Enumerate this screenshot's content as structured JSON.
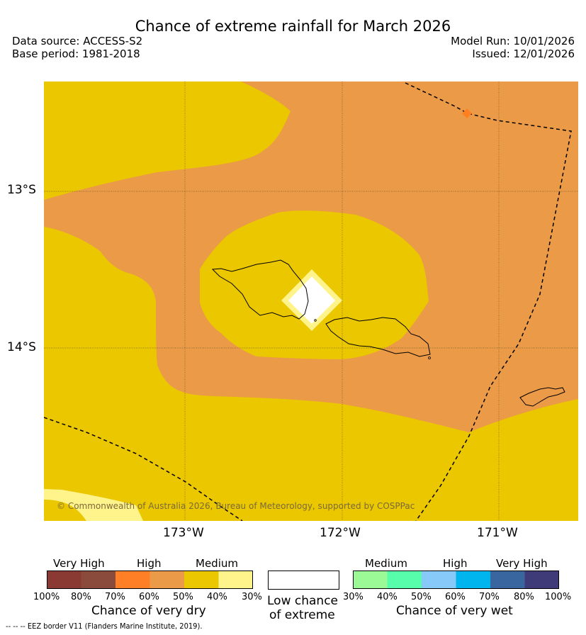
{
  "header": {
    "title": "Chance of extreme rainfall for March 2026",
    "data_source": "Data source: ACCESS-S2",
    "base_period": "Base period: 1981-2018",
    "model_run": "Model Run: 10/01/2026",
    "issued": "Issued: 12/01/2026"
  },
  "map": {
    "lat_labels": [
      "13°S",
      "14°S"
    ],
    "lon_labels": [
      "173°W",
      "172°W",
      "171°W"
    ],
    "copyright": "© Commonwealth of Australia 2026, Bureau of Meteorology, supported by COSPPac",
    "colors": {
      "medium_dry": "#ebc700",
      "high_dry": "#eb9a47",
      "low_dry": "#fff48c",
      "low_chance": "#ffffff",
      "marker": "#ff8020"
    }
  },
  "legend": {
    "dry": {
      "groups": [
        "Very High",
        "High",
        "Medium"
      ],
      "colors": [
        "#8b3a33",
        "#8b4b3c",
        "#ff7f27",
        "#eb9a47",
        "#ebc700",
        "#fff48c"
      ],
      "ticks": [
        "100%",
        "80%",
        "70%",
        "60%",
        "50%",
        "40%",
        "30%"
      ],
      "title": "Chance of very dry"
    },
    "low": {
      "title_line1": "Low chance",
      "title_line2": "of extreme"
    },
    "wet": {
      "groups": [
        "Medium",
        "High",
        "Very High"
      ],
      "colors": [
        "#9bfa96",
        "#57fdab",
        "#87cafa",
        "#00b5ee",
        "#3a66a0",
        "#3f3a78"
      ],
      "ticks": [
        "30%",
        "40%",
        "50%",
        "60%",
        "70%",
        "80%",
        "100%"
      ],
      "title": "Chance of very wet"
    }
  },
  "footer": {
    "eez_symbol": "-- -- --",
    "eez_text": "EEZ border V11 (Flanders Marine Institute, 2019)."
  }
}
